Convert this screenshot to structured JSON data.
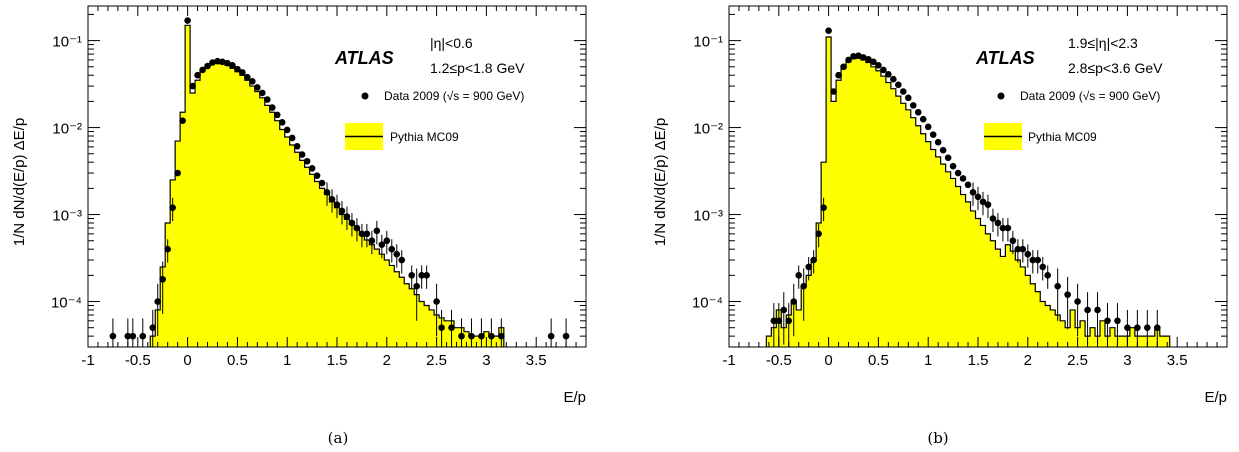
{
  "figure": {
    "panels": [
      {
        "id": "a",
        "caption": "(a)",
        "ylabel": "1/N dN/d(E/p) ΔE/p",
        "xlabel": "E/p",
        "experiment": "ATLAS",
        "selection": [
          "|η|<0.6",
          "1.2≤p<1.8 GeV"
        ],
        "legend": {
          "data": "Data 2009 (√s = 900 GeV)",
          "mc": "Pythia MC09"
        }
      },
      {
        "id": "b",
        "caption": "(b)",
        "ylabel": "1/N dN/d(E/p) ΔE/p",
        "xlabel": "E/p",
        "experiment": "ATLAS",
        "selection": [
          "1.9≤|η|<2.3",
          "2.8≤p<3.6 GeV"
        ],
        "legend": {
          "data": "Data 2009 (√s = 900 GeV)",
          "mc": "Pythia MC09"
        }
      }
    ]
  },
  "style": {
    "mc_fill": "#ffff00",
    "mc_line": "#000000",
    "data_marker": "#000000"
  },
  "chart_data": [
    {
      "type": "area",
      "title": "",
      "xlabel": "E/p",
      "ylabel": "1/N dN/d(E/p) ΔE/p",
      "yscale": "log",
      "xlim": [
        -1,
        4
      ],
      "ylim": [
        3e-05,
        0.25
      ],
      "xticks": [
        -1,
        -0.5,
        0,
        0.5,
        1,
        1.5,
        2,
        2.5,
        3,
        3.5
      ],
      "xtick_labels": [
        "-1",
        "-0.5",
        "0",
        "0.5",
        "1",
        "1.5",
        "2",
        "2.5",
        "3",
        "3.5"
      ],
      "ytick_labels": [
        "10^-4",
        "10^-3",
        "10^-2",
        "10^-1"
      ],
      "legend_position": "top-right",
      "series": [
        {
          "name": "Pythia MC09",
          "kind": "histogram",
          "x": [
            -0.35,
            -0.3,
            -0.25,
            -0.2,
            -0.15,
            -0.1,
            -0.05,
            0,
            0.05,
            0.1,
            0.15,
            0.2,
            0.25,
            0.3,
            0.35,
            0.4,
            0.45,
            0.5,
            0.55,
            0.6,
            0.65,
            0.7,
            0.75,
            0.8,
            0.85,
            0.9,
            0.95,
            1,
            1.05,
            1.1,
            1.15,
            1.2,
            1.25,
            1.3,
            1.35,
            1.4,
            1.45,
            1.5,
            1.55,
            1.6,
            1.65,
            1.7,
            1.75,
            1.8,
            1.85,
            1.9,
            1.95,
            2,
            2.05,
            2.1,
            2.15,
            2.2,
            2.25,
            2.3,
            2.35,
            2.4,
            2.45,
            2.5,
            2.55,
            2.6,
            2.65,
            2.7,
            2.75,
            2.8,
            2.85,
            2.9,
            2.95,
            3,
            3.05,
            3.1,
            3.15
          ],
          "y": [
            4e-05,
            8e-05,
            0.00025,
            0.0008,
            0.0025,
            0.007,
            0.015,
            0.15,
            0.025,
            0.035,
            0.045,
            0.05,
            0.055,
            0.055,
            0.054,
            0.052,
            0.048,
            0.044,
            0.04,
            0.035,
            0.03,
            0.026,
            0.022,
            0.018,
            0.015,
            0.012,
            0.0095,
            0.0078,
            0.0063,
            0.0052,
            0.0042,
            0.0035,
            0.0029,
            0.0024,
            0.002,
            0.0017,
            0.0014,
            0.0012,
            0.001,
            0.00088,
            0.00077,
            0.00067,
            0.00058,
            0.00051,
            0.00045,
            0.0004,
            0.00035,
            0.0003,
            0.00026,
            0.00022,
            0.00019,
            0.00016,
            0.00014,
            0.00012,
            0.0001,
            9e-05,
            8e-05,
            7e-05,
            6.5e-05,
            6e-05,
            6e-05,
            5e-05,
            5e-05,
            4.5e-05,
            4e-05,
            4e-05,
            4e-05,
            4.5e-05,
            4e-05,
            4e-05,
            5e-05
          ]
        },
        {
          "name": "Data 2009 (√s = 900 GeV)",
          "kind": "points",
          "x": [
            -0.75,
            -0.6,
            -0.55,
            -0.45,
            -0.35,
            -0.3,
            -0.25,
            -0.2,
            -0.15,
            -0.1,
            -0.05,
            0,
            0.05,
            0.1,
            0.15,
            0.2,
            0.25,
            0.3,
            0.35,
            0.4,
            0.45,
            0.5,
            0.55,
            0.6,
            0.65,
            0.7,
            0.75,
            0.8,
            0.85,
            0.9,
            0.95,
            1,
            1.05,
            1.1,
            1.15,
            1.2,
            1.25,
            1.3,
            1.35,
            1.4,
            1.45,
            1.5,
            1.55,
            1.6,
            1.65,
            1.7,
            1.75,
            1.8,
            1.85,
            1.9,
            1.95,
            2,
            2.05,
            2.1,
            2.15,
            2.25,
            2.3,
            2.35,
            2.4,
            2.5,
            2.55,
            2.65,
            2.75,
            2.85,
            2.95,
            3.05,
            3.15,
            3.65,
            3.8
          ],
          "y": [
            4e-05,
            4e-05,
            4e-05,
            4e-05,
            5e-05,
            0.0001,
            0.00018,
            0.0004,
            0.0012,
            0.003,
            0.012,
            0.17,
            0.03,
            0.04,
            0.046,
            0.051,
            0.056,
            0.058,
            0.057,
            0.055,
            0.052,
            0.047,
            0.043,
            0.038,
            0.034,
            0.029,
            0.025,
            0.021,
            0.017,
            0.014,
            0.0115,
            0.0094,
            0.0076,
            0.0061,
            0.0049,
            0.0041,
            0.0034,
            0.0028,
            0.0023,
            0.0018,
            0.0015,
            0.0013,
            0.0011,
            0.00095,
            0.0008,
            0.0007,
            0.0006,
            0.0006,
            0.0005,
            0.00065,
            0.00045,
            0.0005,
            0.0004,
            0.00035,
            0.0003,
            0.0002,
            0.00015,
            0.0002,
            0.0002,
            0.0001,
            5e-05,
            5e-05,
            4e-05,
            4e-05,
            4e-05,
            4e-05,
            4e-05,
            4e-05,
            4e-05
          ]
        }
      ]
    },
    {
      "type": "area",
      "title": "",
      "xlabel": "E/p",
      "ylabel": "1/N dN/d(E/p) ΔE/p",
      "yscale": "log",
      "xlim": [
        -1,
        4
      ],
      "ylim": [
        3e-05,
        0.25
      ],
      "xticks": [
        -1,
        -0.5,
        0,
        0.5,
        1,
        1.5,
        2,
        2.5,
        3,
        3.5
      ],
      "xtick_labels": [
        "-1",
        "-0.5",
        "0",
        "0.5",
        "1",
        "1.5",
        "2",
        "2.5",
        "3",
        "3.5"
      ],
      "ytick_labels": [
        "10^-4",
        "10^-3",
        "10^-2",
        "10^-1"
      ],
      "legend_position": "top-right",
      "series": [
        {
          "name": "Pythia MC09",
          "kind": "histogram",
          "x": [
            -0.6,
            -0.55,
            -0.5,
            -0.45,
            -0.4,
            -0.35,
            -0.3,
            -0.25,
            -0.2,
            -0.15,
            -0.1,
            -0.05,
            0,
            0.05,
            0.1,
            0.15,
            0.2,
            0.25,
            0.3,
            0.35,
            0.4,
            0.45,
            0.5,
            0.55,
            0.6,
            0.65,
            0.7,
            0.75,
            0.8,
            0.85,
            0.9,
            0.95,
            1,
            1.05,
            1.1,
            1.15,
            1.2,
            1.25,
            1.3,
            1.35,
            1.4,
            1.45,
            1.5,
            1.55,
            1.6,
            1.65,
            1.7,
            1.75,
            1.8,
            1.85,
            1.9,
            1.95,
            2,
            2.05,
            2.1,
            2.15,
            2.2,
            2.25,
            2.3,
            2.35,
            2.4,
            2.45,
            2.5,
            2.55,
            2.6,
            2.65,
            2.7,
            2.75,
            2.8,
            2.85,
            2.9,
            2.95,
            3,
            3.05,
            3.1,
            3.15,
            3.2,
            3.25,
            3.3,
            3.35,
            3.4
          ],
          "y": [
            4e-05,
            5e-05,
            8e-05,
            5e-05,
            7e-05,
            0.0001,
            8e-05,
            0.00015,
            0.0002,
            0.0003,
            0.0008,
            0.004,
            0.11,
            0.02,
            0.035,
            0.048,
            0.057,
            0.062,
            0.063,
            0.06,
            0.056,
            0.05,
            0.045,
            0.039,
            0.033,
            0.028,
            0.023,
            0.019,
            0.016,
            0.013,
            0.0105,
            0.0085,
            0.0069,
            0.0056,
            0.0046,
            0.0038,
            0.0031,
            0.0026,
            0.0021,
            0.0017,
            0.0014,
            0.0011,
            0.0009,
            0.00075,
            0.0006,
            0.0005,
            0.0004,
            0.00033,
            0.00045,
            0.00038,
            0.0003,
            0.00025,
            0.0002,
            0.00016,
            0.00013,
            0.0001,
            9e-05,
            8e-05,
            7e-05,
            6e-05,
            5e-05,
            8e-05,
            5e-05,
            6e-05,
            4e-05,
            5e-05,
            4e-05,
            6e-05,
            4e-05,
            5e-05,
            4e-05,
            4e-05,
            4e-05,
            5e-05,
            4e-05,
            4e-05,
            4e-05,
            4e-05,
            5e-05,
            4e-05,
            4e-05
          ]
        },
        {
          "name": "Data 2009 (√s = 900 GeV)",
          "kind": "points",
          "x": [
            -0.55,
            -0.5,
            -0.45,
            -0.4,
            -0.35,
            -0.3,
            -0.25,
            -0.2,
            -0.15,
            -0.1,
            -0.05,
            0,
            0.05,
            0.1,
            0.15,
            0.2,
            0.25,
            0.3,
            0.35,
            0.4,
            0.45,
            0.5,
            0.55,
            0.6,
            0.65,
            0.7,
            0.75,
            0.8,
            0.85,
            0.9,
            0.95,
            1,
            1.05,
            1.1,
            1.15,
            1.2,
            1.25,
            1.3,
            1.35,
            1.4,
            1.45,
            1.5,
            1.55,
            1.6,
            1.65,
            1.7,
            1.75,
            1.8,
            1.85,
            1.9,
            1.95,
            2,
            2.05,
            2.1,
            2.15,
            2.2,
            2.3,
            2.4,
            2.5,
            2.6,
            2.7,
            2.8,
            2.9,
            3,
            3.1,
            3.2,
            3.3
          ],
          "y": [
            6e-05,
            6e-05,
            8e-05,
            6e-05,
            0.0001,
            0.0002,
            0.00015,
            0.00025,
            0.0003,
            0.0006,
            0.0012,
            0.13,
            0.026,
            0.04,
            0.05,
            0.06,
            0.066,
            0.067,
            0.064,
            0.061,
            0.057,
            0.052,
            0.046,
            0.041,
            0.036,
            0.031,
            0.026,
            0.022,
            0.018,
            0.015,
            0.0125,
            0.0102,
            0.0083,
            0.0068,
            0.0055,
            0.0045,
            0.0036,
            0.003,
            0.0026,
            0.0022,
            0.0018,
            0.0016,
            0.0014,
            0.0013,
            0.0009,
            0.0008,
            0.0007,
            0.0007,
            0.0005,
            0.0004,
            0.0004,
            0.00035,
            0.0003,
            0.0003,
            0.00025,
            0.0002,
            0.00015,
            0.00012,
            0.0001,
            8e-05,
            8e-05,
            6e-05,
            6e-05,
            5e-05,
            5e-05,
            5e-05,
            5e-05
          ]
        }
      ]
    }
  ]
}
